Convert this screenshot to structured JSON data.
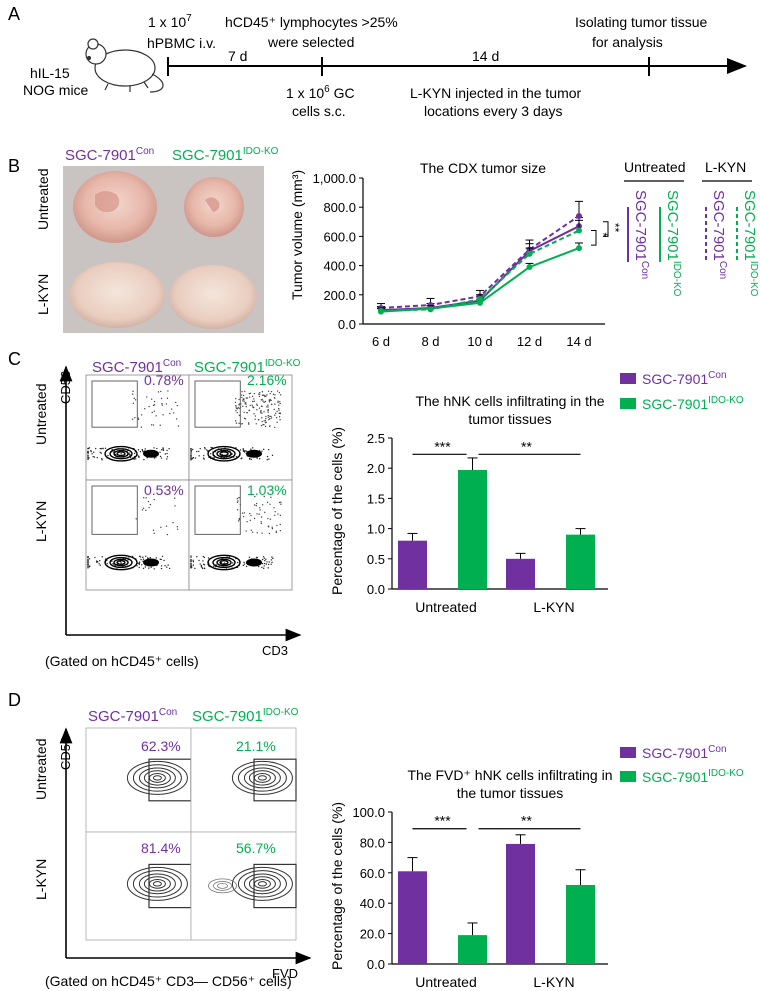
{
  "colors": {
    "purple": "#7030A0",
    "green": "#00B050"
  },
  "panel_letters": [
    "A",
    "B",
    "C",
    "D"
  ],
  "timeline": {
    "mouse_label_1": "hIL-15",
    "mouse_label_2": "NOG mice",
    "pbmc_1": "1 x 10",
    "pbmc_exp": "7",
    "pbmc_2": "hPBMC i.v.",
    "selection_1": "hCD45⁺ lymphocytes >25%",
    "selection_2": "were selected",
    "seg1_days": "7 d",
    "seg2_days": "14 d",
    "isolate_1": "Isolating tumor tissue",
    "isolate_2": "for analysis",
    "gc_1": "1 x 10",
    "gc_exp": "6",
    "gc_1b": " GC",
    "gc_2": "cells s.c.",
    "kyn_1": "L-KYN injected in the tumor",
    "kyn_2": "locations every 3 days"
  },
  "groups": {
    "con_base": "SGC-7901",
    "con_sup": "Con",
    "ko_base": "SGC-7901",
    "ko_sup": "IDO-KO",
    "untreated": "Untreated",
    "lkyn": "L-KYN"
  },
  "panel_b": {
    "photo_rows": [
      "Untreated",
      "L-KYN"
    ],
    "legend_headers": [
      "Untreated",
      "L-KYN"
    ],
    "significance": [
      "*",
      "**"
    ]
  },
  "panel_c": {
    "facs_title_con": "SGC-7901Con",
    "facs_pct": [
      "0.78%",
      "2.16%",
      "0.53%",
      "1.03%"
    ],
    "axis_y": "CD56",
    "axis_x": "CD3",
    "gating": "(Gated on hCD45⁺ cells)",
    "significance": [
      "***",
      "**"
    ]
  },
  "panel_d": {
    "facs_pct": [
      "62.3%",
      "21.1%",
      "81.4%",
      "56.7%"
    ],
    "axis_y": "CD56",
    "axis_x": "FVD",
    "gating": "(Gated on hCD45⁺ CD3— CD56⁺ cells)",
    "significance": [
      "***",
      "**"
    ]
  },
  "chart_data": [
    {
      "type": "line",
      "title": "The CDX tumor size",
      "xlabel": "",
      "ylabel": "Tumor volume (mm³)",
      "categories": [
        "6 d",
        "8 d",
        "10 d",
        "12 d",
        "14 d"
      ],
      "ylim": [
        0,
        1000
      ],
      "ytick_labels": [
        "0.0",
        "200.0",
        "400.0",
        "600.0",
        "800.0",
        "1,000.0"
      ],
      "series": [
        {
          "name": "SGC-7901Con Untreated",
          "color": "#7030A0",
          "dashed": false,
          "values": [
            95,
            110,
            160,
            500,
            670
          ],
          "errors": [
            25,
            30,
            30,
            50,
            60
          ]
        },
        {
          "name": "SGC-7901IDO-KO Untreated",
          "color": "#00B050",
          "dashed": false,
          "values": [
            85,
            105,
            145,
            390,
            520
          ],
          "errors": [
            20,
            20,
            25,
            25,
            35
          ]
        },
        {
          "name": "SGC-7901Con L-KYN",
          "color": "#7030A0",
          "dashed": true,
          "values": [
            110,
            130,
            190,
            510,
            740
          ],
          "errors": [
            30,
            45,
            40,
            65,
            100
          ]
        },
        {
          "name": "SGC-7901IDO-KO L-KYN",
          "color": "#00B050",
          "dashed": true,
          "values": [
            90,
            100,
            170,
            480,
            640
          ],
          "errors": [
            20,
            25,
            30,
            40,
            70
          ]
        }
      ]
    },
    {
      "type": "bar",
      "title_1": "The hNK cells infiltrating in the",
      "title_2": "tumor tissues",
      "ylabel": "Percentage of the cells (%)",
      "categories": [
        "Untreated",
        "L-KYN"
      ],
      "ylim": [
        0,
        2.5
      ],
      "ytick_labels": [
        "0.0",
        "0.5",
        "1.0",
        "1.5",
        "2.0",
        "2.5"
      ],
      "series": [
        {
          "name": "SGC-7901Con",
          "color": "#7030A0",
          "values": [
            0.8,
            0.5
          ],
          "errors": [
            0.12,
            0.09
          ]
        },
        {
          "name": "SGC-7901IDO-KO",
          "color": "#00B050",
          "values": [
            1.97,
            0.9
          ],
          "errors": [
            0.2,
            0.1
          ]
        }
      ]
    },
    {
      "type": "bar",
      "title_1": "The FVD⁺ hNK cells infiltrating in",
      "title_2": "the tumor tissues",
      "ylabel": "Percentage of the cells (%)",
      "categories": [
        "Untreated",
        "L-KYN"
      ],
      "ylim": [
        0,
        100
      ],
      "ytick_labels": [
        "0.0",
        "20.0",
        "40.0",
        "60.0",
        "80.0",
        "100.0"
      ],
      "series": [
        {
          "name": "SGC-7901Con",
          "color": "#7030A0",
          "values": [
            61,
            79
          ],
          "errors": [
            9,
            6
          ]
        },
        {
          "name": "SGC-7901IDO-KO",
          "color": "#00B050",
          "values": [
            19,
            52
          ],
          "errors": [
            8,
            10
          ]
        }
      ]
    }
  ]
}
